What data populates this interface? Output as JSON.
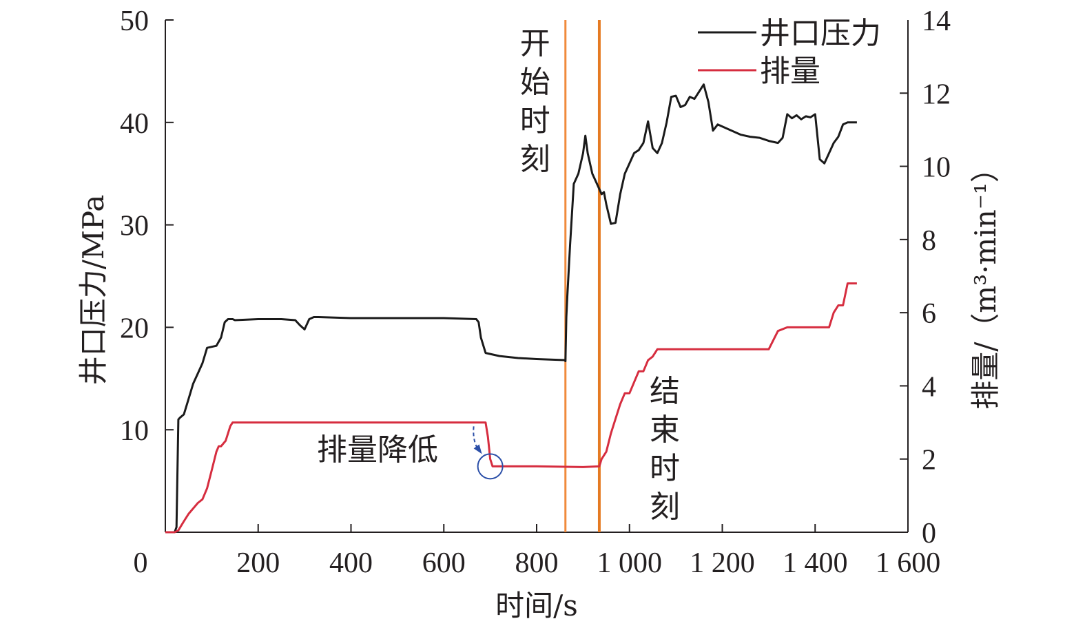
{
  "chart_data": {
    "type": "line",
    "xlabel": "时间/s",
    "ylabel_left": "井口压力/MPa",
    "ylabel_right": "排量/（m³·min⁻¹）",
    "xlim": [
      0,
      1600
    ],
    "ylim_left": [
      0,
      50
    ],
    "ylim_right": [
      0,
      14
    ],
    "x_ticks": [
      0,
      200,
      400,
      600,
      800,
      1000,
      1200,
      1400,
      1600
    ],
    "x_tick_labels": [
      "0",
      "200",
      "400",
      "600",
      "800",
      "1 000",
      "1 200",
      "1 400",
      "1 600"
    ],
    "y_left_ticks": [
      10,
      20,
      30,
      40,
      50
    ],
    "y_left_tick_labels": [
      "10",
      "20",
      "30",
      "40",
      "50"
    ],
    "y_right_ticks": [
      0,
      2,
      4,
      6,
      8,
      10,
      12,
      14
    ],
    "y_right_tick_labels": [
      "0",
      "2",
      "4",
      "6",
      "8",
      "10",
      "12",
      "14"
    ],
    "legend_position": "top-right",
    "colors": {
      "pressure": "#1a1a1a",
      "rate": "#d62d3f",
      "marker_start": "#f08a3c",
      "marker_end": "#e57a22",
      "highlight": "#2b4fa8",
      "axis": "#231f20"
    },
    "series": [
      {
        "name": "井口压力",
        "axis": "left",
        "x": [
          0,
          20,
          24,
          28,
          32,
          40,
          50,
          60,
          70,
          80,
          90,
          100,
          110,
          120,
          128,
          135,
          140,
          145,
          150,
          200,
          250,
          280,
          290,
          300,
          310,
          320,
          330,
          400,
          500,
          600,
          670,
          675,
          680,
          690,
          700,
          720,
          760,
          800,
          860,
          862,
          864,
          866,
          872,
          880,
          890,
          900,
          905,
          910,
          920,
          930,
          940,
          945,
          950,
          960,
          970,
          980,
          990,
          1000,
          1010,
          1020,
          1030,
          1040,
          1050,
          1060,
          1070,
          1080,
          1090,
          1100,
          1110,
          1120,
          1130,
          1140,
          1150,
          1160,
          1170,
          1180,
          1190,
          1200,
          1220,
          1240,
          1260,
          1280,
          1300,
          1320,
          1330,
          1340,
          1350,
          1360,
          1370,
          1380,
          1390,
          1400,
          1410,
          1420,
          1430,
          1440,
          1450,
          1460,
          1470,
          1480,
          1490
        ],
        "values": [
          0,
          0,
          0.5,
          11,
          11.2,
          11.5,
          13,
          14.5,
          15.5,
          16.5,
          18,
          18.1,
          18.2,
          19,
          20.5,
          20.8,
          20.8,
          20.8,
          20.7,
          20.8,
          20.8,
          20.7,
          20.2,
          19.8,
          20.8,
          21,
          21,
          20.9,
          20.9,
          20.9,
          20.8,
          20.5,
          19,
          17.5,
          17.4,
          17.2,
          17,
          16.9,
          16.8,
          16.7,
          21,
          23,
          28,
          34,
          35,
          37,
          38.7,
          37,
          35,
          34,
          33,
          33.2,
          32,
          30.1,
          30.2,
          33,
          35,
          36,
          37,
          37.3,
          38,
          40.1,
          37.5,
          37,
          38,
          40,
          42.5,
          42.6,
          41.5,
          41.7,
          42.5,
          42.3,
          43,
          43.7,
          42,
          39.2,
          39.8,
          39.6,
          39.2,
          38.8,
          38.6,
          38.5,
          38.2,
          38,
          38.5,
          40.8,
          40.4,
          40.7,
          40.3,
          40.6,
          40.5,
          40.8,
          36.4,
          36,
          37,
          38,
          38.6,
          39.8,
          40,
          40,
          40
        ]
      },
      {
        "name": "排量",
        "axis": "right",
        "x": [
          0,
          20,
          28,
          40,
          50,
          60,
          70,
          80,
          90,
          100,
          110,
          115,
          120,
          130,
          140,
          145,
          150,
          200,
          300,
          400,
          500,
          600,
          690,
          695,
          700,
          705,
          710,
          720,
          800,
          900,
          935,
          940,
          950,
          960,
          970,
          980,
          990,
          1000,
          1010,
          1020,
          1030,
          1040,
          1050,
          1060,
          1070,
          1080,
          1090,
          1100,
          1200,
          1300,
          1320,
          1340,
          1400,
          1430,
          1440,
          1450,
          1460,
          1470,
          1480,
          1490
        ],
        "values": [
          0,
          0,
          0.05,
          0.3,
          0.5,
          0.65,
          0.8,
          0.9,
          1.2,
          1.7,
          2.2,
          2.35,
          2.35,
          2.5,
          2.9,
          3.0,
          3.0,
          3.0,
          3.0,
          3.0,
          3.0,
          3.0,
          3.0,
          2.6,
          2.0,
          1.8,
          1.8,
          1.8,
          1.8,
          1.78,
          1.8,
          2.0,
          2.2,
          2.7,
          3.1,
          3.5,
          3.8,
          3.8,
          4.1,
          4.4,
          4.4,
          4.7,
          4.8,
          5.0,
          5.0,
          5.0,
          5.0,
          5.0,
          5.0,
          5.0,
          5.5,
          5.6,
          5.6,
          5.6,
          6.0,
          6.2,
          6.2,
          6.8,
          6.8,
          6.8
        ]
      }
    ],
    "vertical_markers": [
      {
        "x": 862,
        "label": "开始时刻",
        "chars": [
          "开",
          "始",
          "时",
          "刻"
        ]
      },
      {
        "x": 935,
        "label": "结束时刻",
        "chars": [
          "结",
          "束",
          "时",
          "刻"
        ]
      }
    ],
    "annotations": [
      {
        "text": "排量降低",
        "x": 700,
        "y_right": 1.8
      }
    ]
  }
}
